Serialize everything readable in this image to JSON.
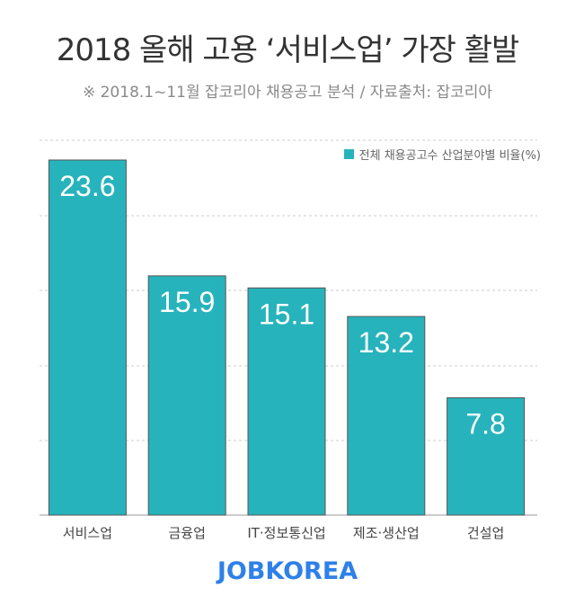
{
  "title": "2018 올해 고용 ‘서비스업’ 가장 활발",
  "subtitle": "※ 2018.1~11월 잡코리아 채용공고 분석 / 자료출처: 잡코리아",
  "logo_text": "JOBKOREA",
  "colors": {
    "bar": "#27b3bc",
    "bar_border": "#555555",
    "grid": "#cccccc",
    "logo": "#2f80e8"
  },
  "chart_data": {
    "type": "bar",
    "title": "2018 올해 고용 ‘서비스업’ 가장 활발",
    "subtitle": "※ 2018.1~11월 잡코리아 채용공고 분석 / 자료출처: 잡코리아",
    "categories": [
      "서비스업",
      "금융업",
      "IT·정보통신업",
      "제조·생산업",
      "건설업"
    ],
    "series": [
      {
        "name": "전체 채용공고수 산업분야별 비율(%)",
        "values": [
          23.6,
          15.9,
          15.1,
          13.2,
          7.8
        ]
      }
    ],
    "value_labels": [
      "23.6",
      "15.9",
      "15.1",
      "13.2",
      "7.8"
    ],
    "ylim": [
      0,
      25
    ],
    "grid": true,
    "legend_position": "top-right",
    "xlabel": "",
    "ylabel": ""
  }
}
